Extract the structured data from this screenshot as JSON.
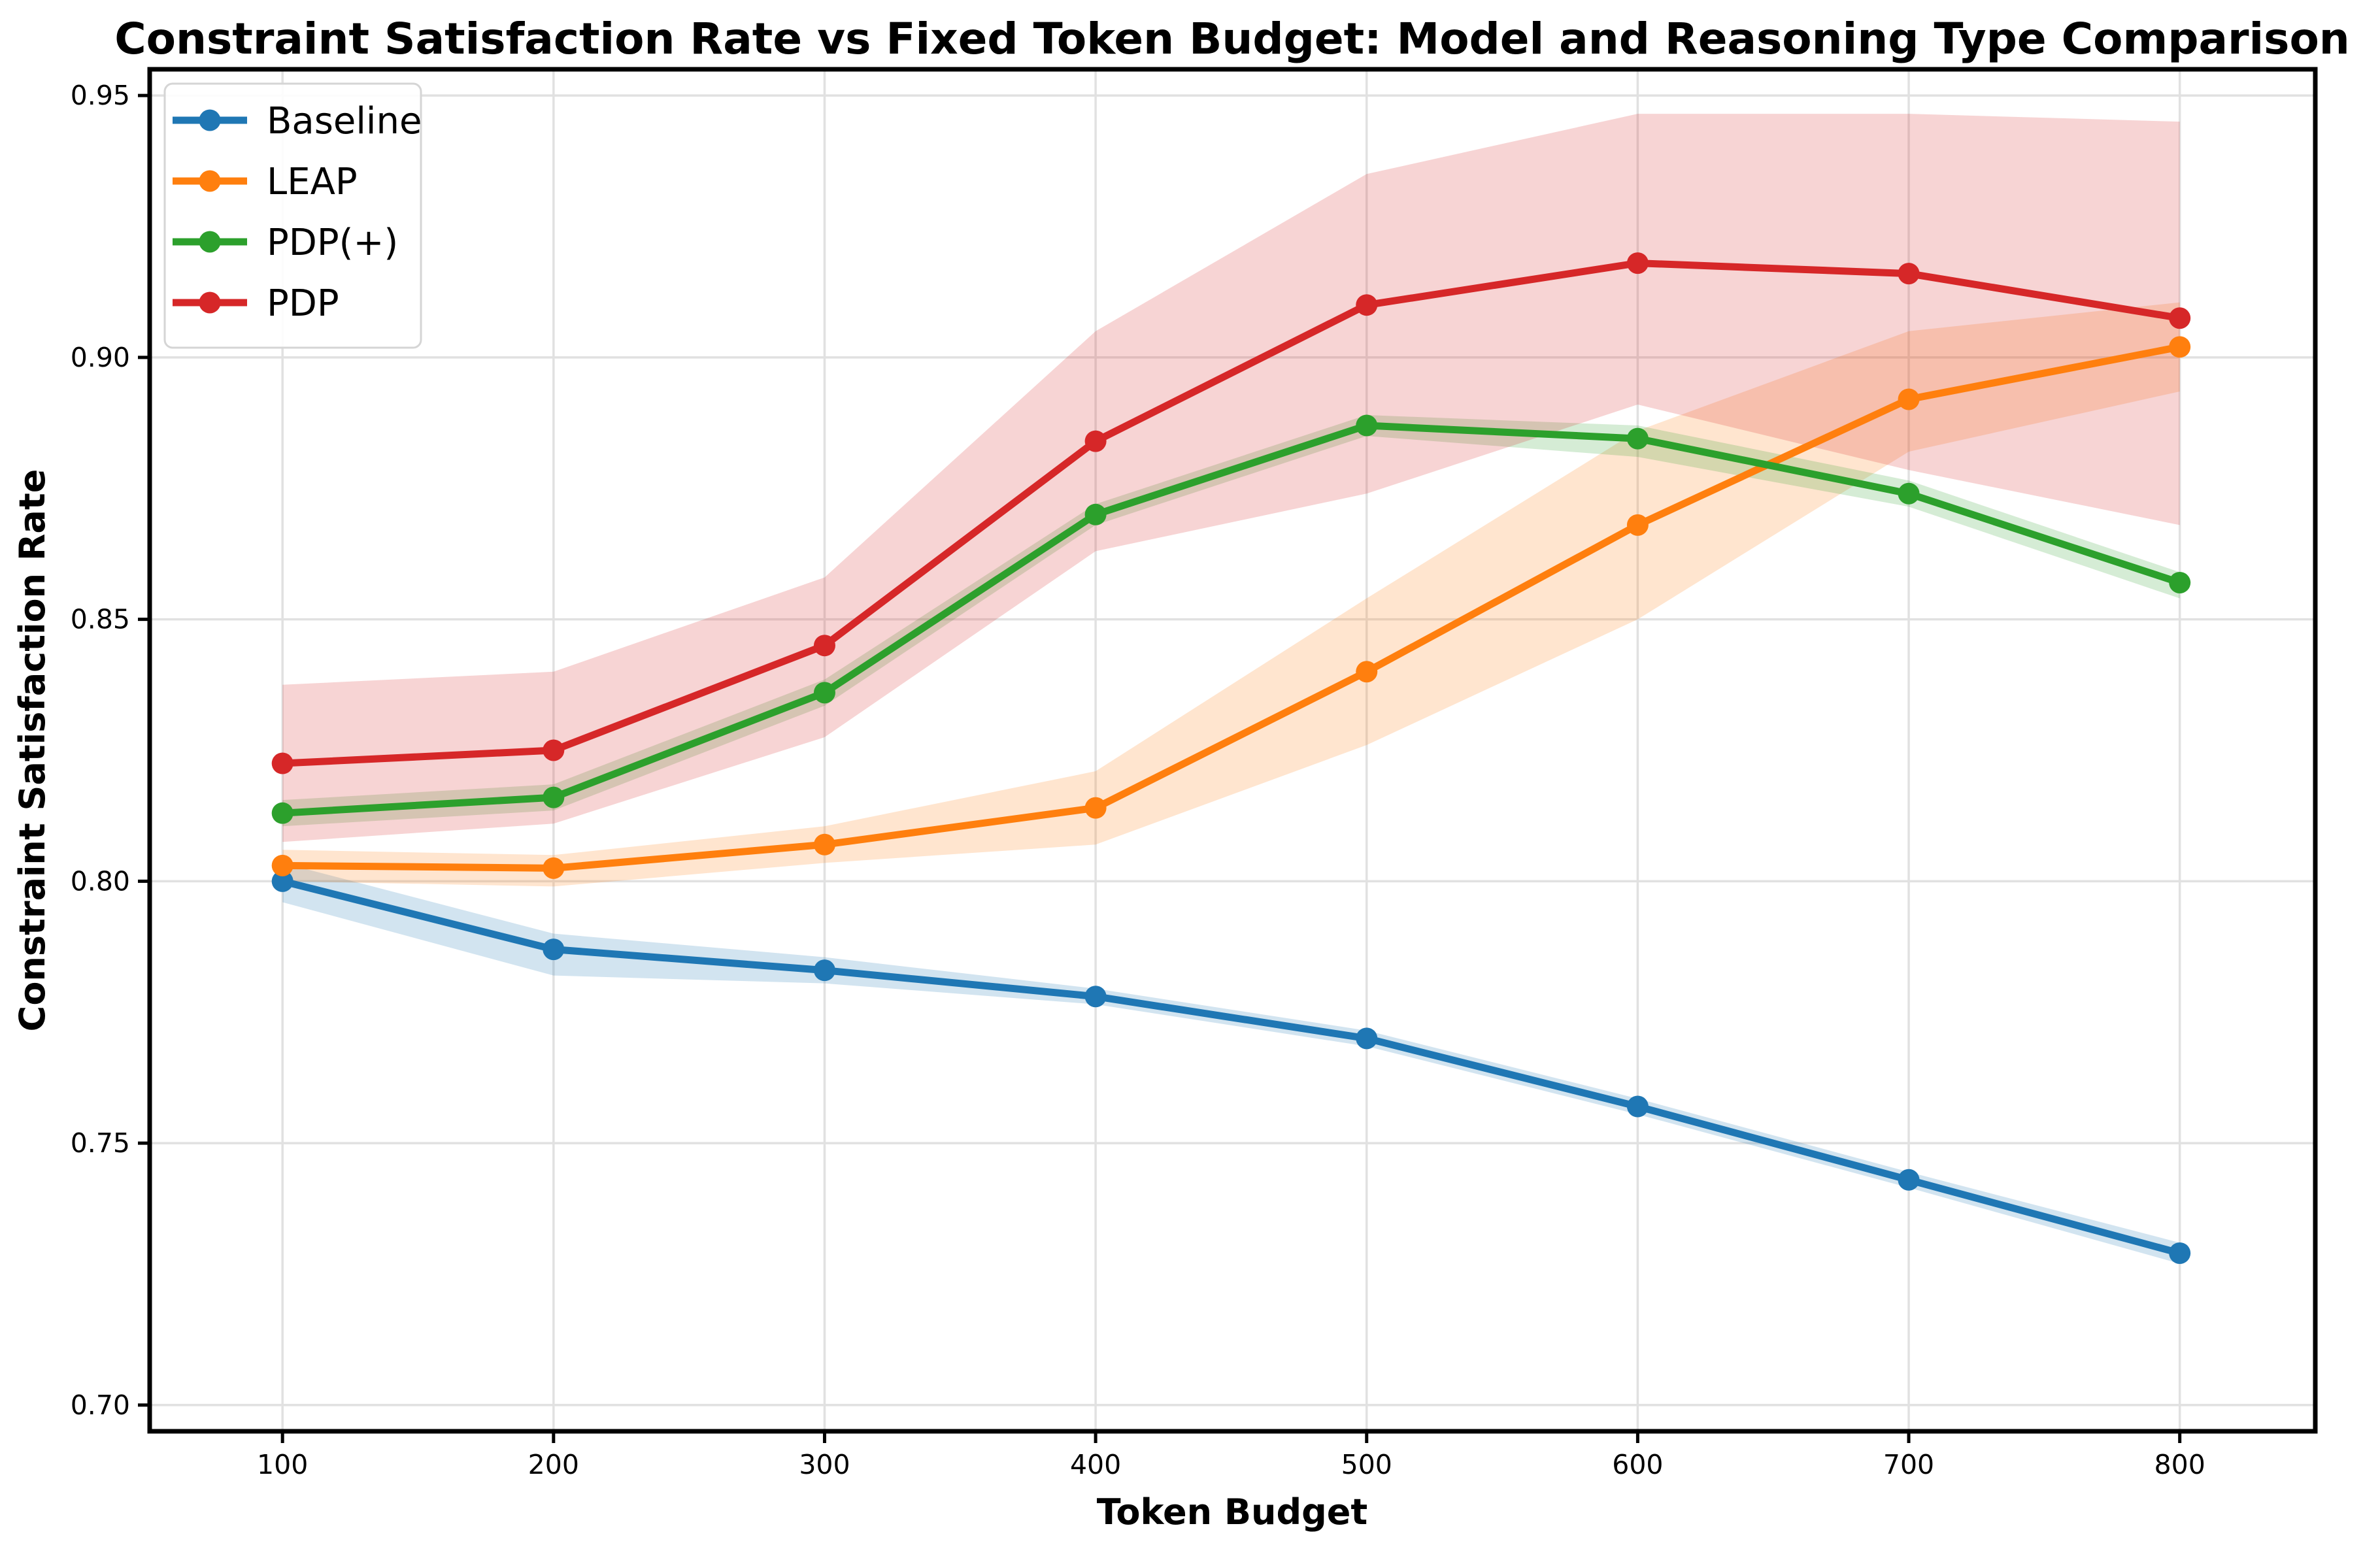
{
  "figure": {
    "background": "#ffffff",
    "title": "Constraint Satisfaction Rate vs Fixed Token Budget: Model and Reasoning Type Comparison"
  },
  "chart_data": {
    "type": "line",
    "title": "Constraint Satisfaction Rate vs Fixed Token Budget: Model and Reasoning Type Comparison",
    "xlabel": "Token Budget",
    "ylabel": "Constraint Satisfaction Rate",
    "x": [
      100,
      200,
      300,
      400,
      500,
      600,
      700,
      800
    ],
    "xticks": [
      100,
      200,
      300,
      400,
      500,
      600,
      700,
      800
    ],
    "yticks": [
      0.7,
      0.75,
      0.8,
      0.85,
      0.9,
      0.95
    ],
    "xlim": [
      51,
      850
    ],
    "ylim": [
      0.695,
      0.955
    ],
    "grid": true,
    "grid_color": "#e1e1e1",
    "spine_color": "#000000",
    "legend_position": "upper-left",
    "band_opacity": 0.2,
    "series": [
      {
        "name": "Baseline",
        "color": "#1f77b4",
        "values": [
          0.8,
          0.787,
          0.783,
          0.778,
          0.77,
          0.757,
          0.743,
          0.729
        ],
        "band_lower": [
          0.796,
          0.782,
          0.7805,
          0.7765,
          0.7685,
          0.7555,
          0.7415,
          0.727
        ],
        "band_upper": [
          0.8035,
          0.79,
          0.7855,
          0.7795,
          0.7715,
          0.7585,
          0.7445,
          0.731
        ]
      },
      {
        "name": "LEAP",
        "color": "#ff7f0e",
        "values": [
          0.803,
          0.8025,
          0.807,
          0.814,
          0.84,
          0.868,
          0.892,
          0.902
        ],
        "band_lower": [
          0.8,
          0.799,
          0.8035,
          0.807,
          0.826,
          0.85,
          0.882,
          0.8935
        ],
        "band_upper": [
          0.806,
          0.805,
          0.8105,
          0.821,
          0.854,
          0.886,
          0.905,
          0.9105
        ]
      },
      {
        "name": "PDP(+)",
        "color": "#2ca02c",
        "values": [
          0.813,
          0.816,
          0.836,
          0.87,
          0.887,
          0.8845,
          0.874,
          0.857
        ],
        "band_lower": [
          0.8105,
          0.8135,
          0.8335,
          0.868,
          0.885,
          0.881,
          0.8715,
          0.854
        ],
        "band_upper": [
          0.8155,
          0.8185,
          0.8385,
          0.872,
          0.889,
          0.887,
          0.8765,
          0.859
        ]
      },
      {
        "name": "PDP",
        "color": "#d62728",
        "values": [
          0.8225,
          0.825,
          0.845,
          0.884,
          0.91,
          0.918,
          0.916,
          0.9075
        ],
        "band_lower": [
          0.8075,
          0.811,
          0.8275,
          0.863,
          0.874,
          0.891,
          0.8785,
          0.868
        ],
        "band_upper": [
          0.8375,
          0.84,
          0.858,
          0.905,
          0.935,
          0.9465,
          0.9465,
          0.945
        ]
      }
    ]
  }
}
